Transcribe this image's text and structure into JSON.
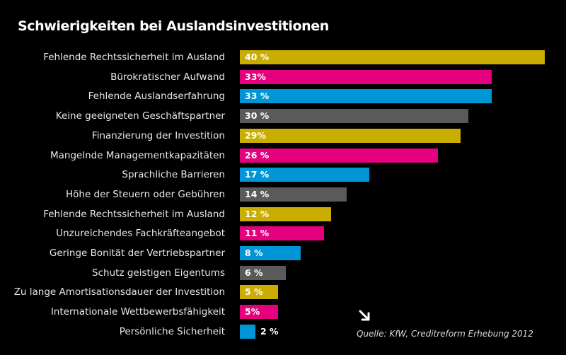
{
  "colors": {
    "background": "#000000",
    "gold": "#c9ad00",
    "magenta": "#e5007e",
    "blue": "#0096d6",
    "gray": "#5a5a5a"
  },
  "chart_data": {
    "type": "bar",
    "orientation": "horizontal",
    "title": "Schwierigkeiten bei Auslandsinvestitionen",
    "source": "Quelle: KfW, Creditreform Erhebung 2012",
    "xlim": [
      0,
      40
    ],
    "categories": [
      "Fehlende Rechtssicherheit im Ausland",
      "Bürokratischer Aufwand",
      "Fehlende Auslandserfahrung",
      "Keine geeigneten Geschäftspartner",
      "Finanzierung der Investition",
      "Mangelnde Managementkapazitäten",
      "Sprachliche Barrieren",
      "Höhe der Steuern oder Gebühren",
      "Fehlende Rechtssicherheit im Ausland",
      "Unzureichendes Fachkräfteangebot",
      "Geringe Bonität der Vertriebspartner",
      "Schutz geistigen Eigentums",
      "Zu lange Amortisationsdauer der Investition",
      "Internationale Wettbewerbsfähigkeit",
      "Persönliche Sicherheit"
    ],
    "values": [
      40,
      33,
      33,
      30,
      29,
      26,
      17,
      14,
      12,
      11,
      8,
      6,
      5,
      5,
      2
    ],
    "value_labels": [
      "40 %",
      "33%",
      "33 %",
      "30 %",
      "29%",
      "26 %",
      "17 %",
      "14 %",
      "12 %",
      "11 %",
      "8 %",
      "6 %",
      "5 %",
      "5%",
      "2 %"
    ],
    "bar_colors": [
      "gold",
      "magenta",
      "blue",
      "gray",
      "gold",
      "magenta",
      "blue",
      "gray",
      "gold",
      "magenta",
      "blue",
      "gray",
      "gold",
      "magenta",
      "blue"
    ]
  },
  "icons": {
    "source_arrow": "arrow-down-right-icon"
  }
}
